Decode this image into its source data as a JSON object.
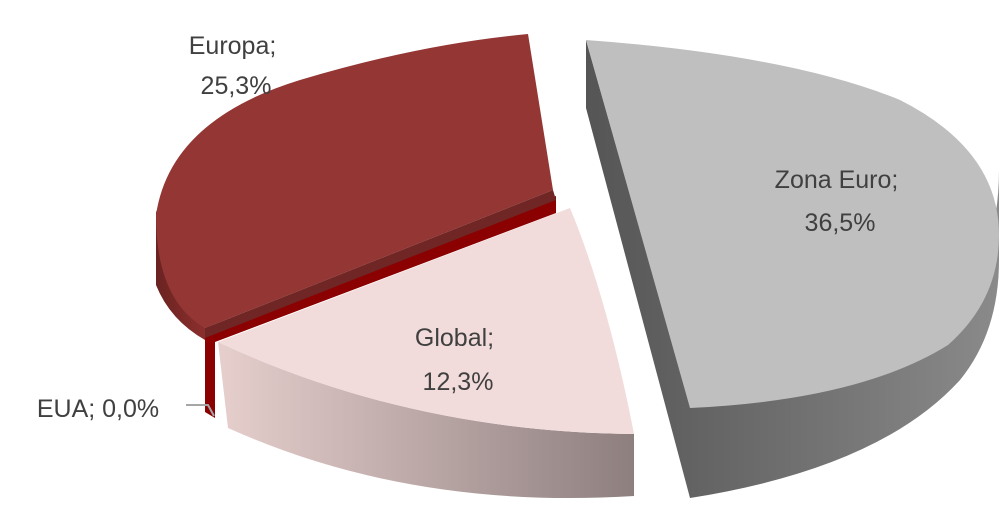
{
  "chart_data": {
    "type": "pie",
    "style": "3d-exploded",
    "slices": [
      {
        "label": "Zona Euro",
        "value": 36.5,
        "display": "36,5%",
        "color": "#bfbfbf",
        "side_color": "#6e6e6e"
      },
      {
        "label": "Global",
        "value": 12.3,
        "display": "12,3%",
        "color": "#f2dcdb",
        "side_color": "#b8a4a3"
      },
      {
        "label": "EUA",
        "value": 0.0,
        "display": "0,0%",
        "color": "#8b0000",
        "side_color": "#6e0000"
      },
      {
        "label": "Europa",
        "value": 25.3,
        "display": "25,3%",
        "color": "#943634",
        "side_color": "#6f2624"
      }
    ],
    "labels": {
      "zona_euro": [
        "Zona Euro;",
        "36,5%"
      ],
      "global": [
        "Global;",
        "12,3%"
      ],
      "eua": "EUA; 0,0%",
      "europa": [
        "Europa;",
        "25,3%"
      ]
    },
    "legend": "none"
  }
}
